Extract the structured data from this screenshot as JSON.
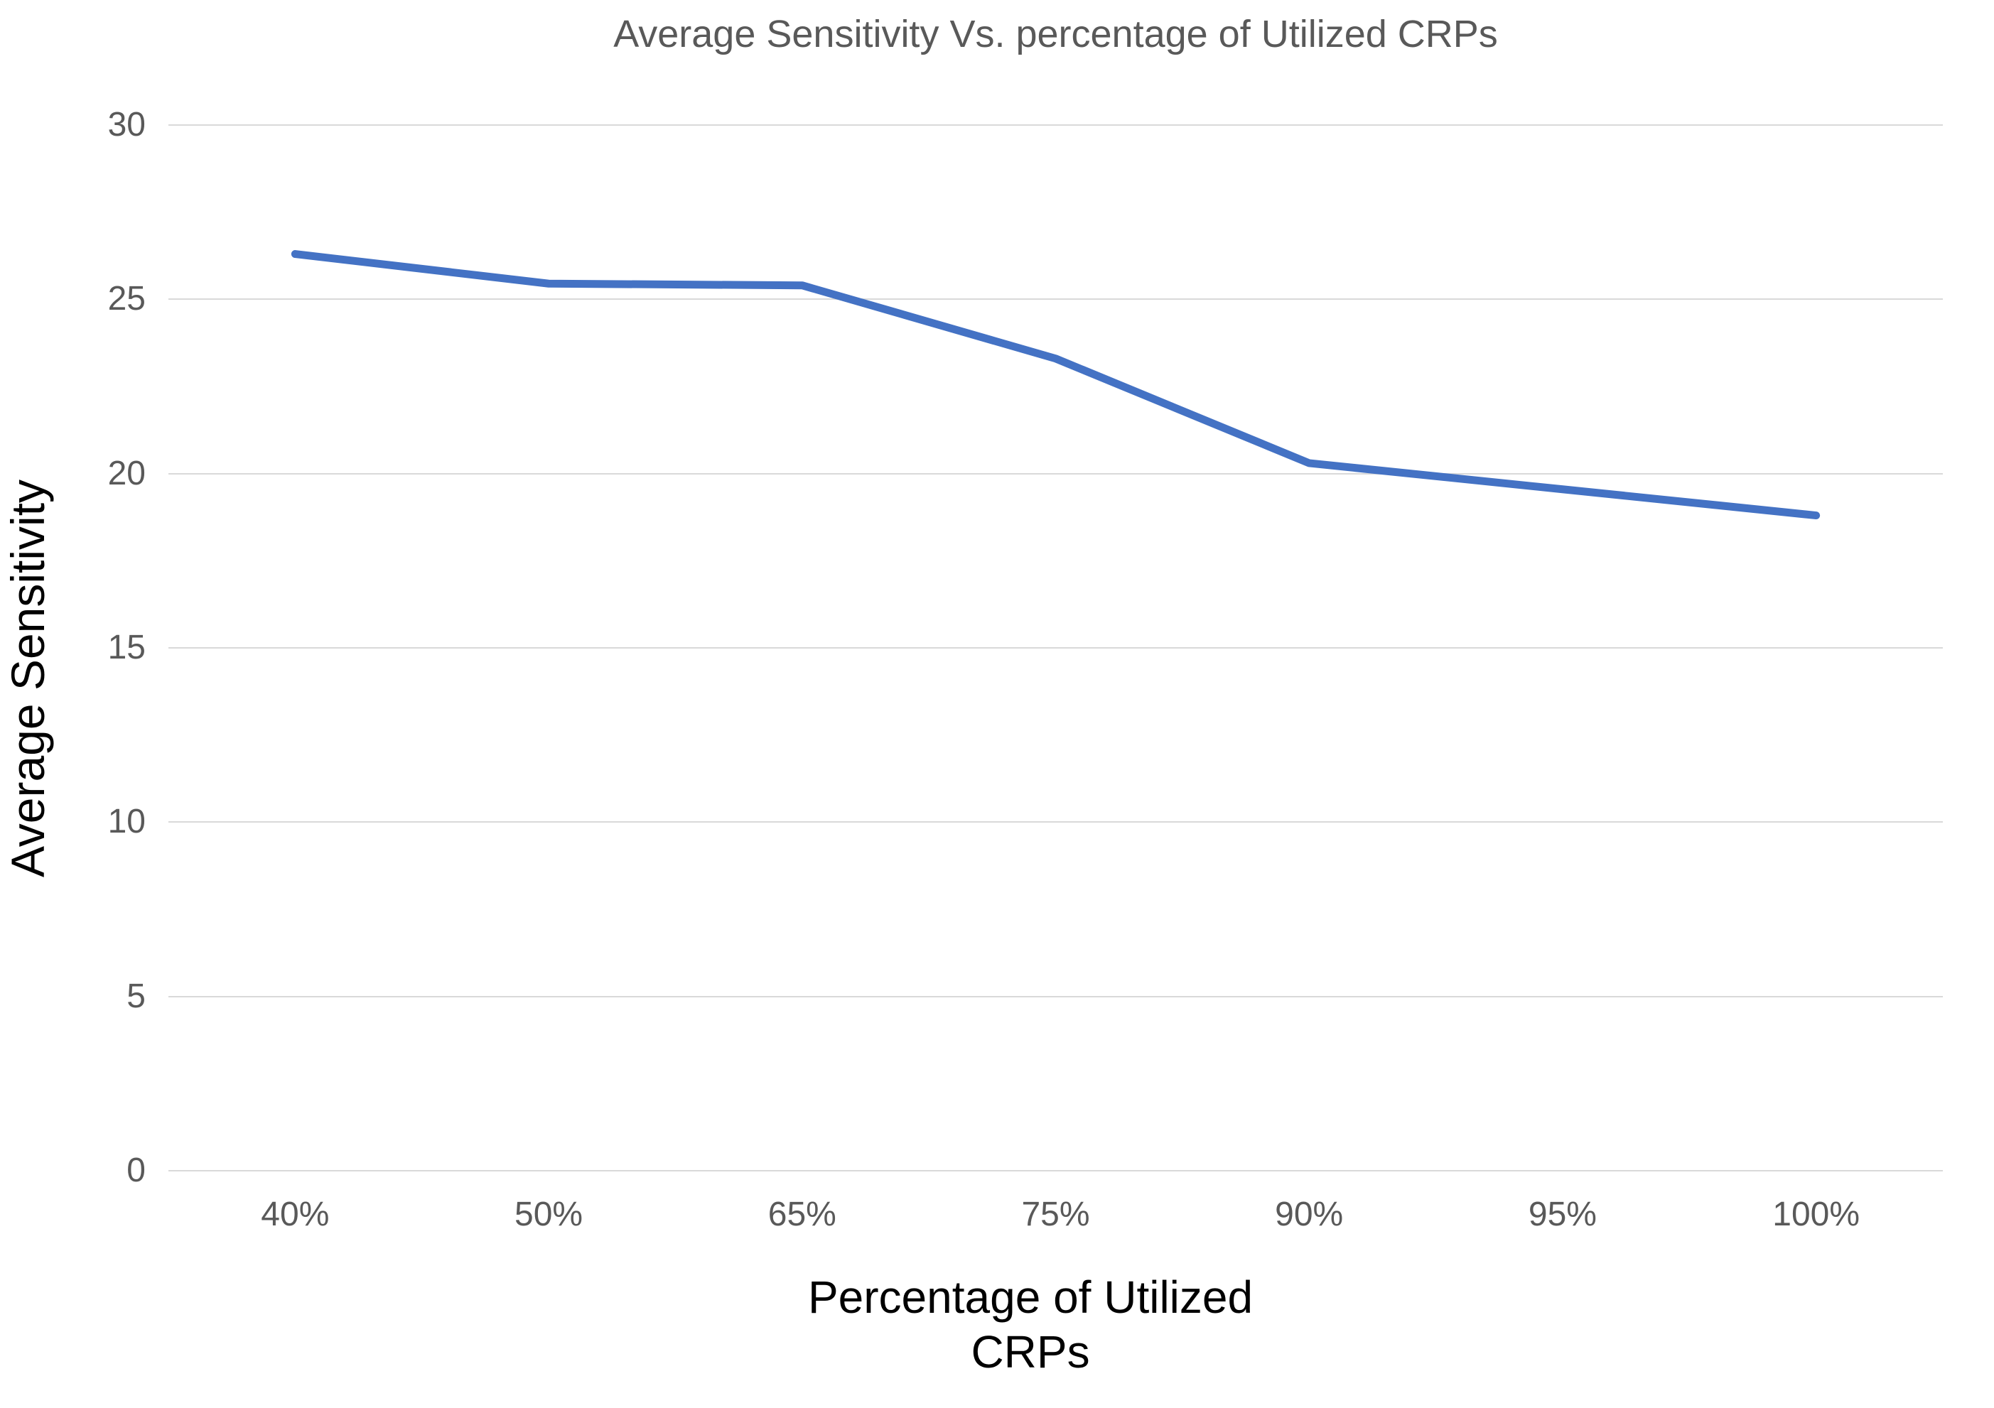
{
  "page": {
    "background": "#ffffff"
  },
  "chart_data": {
    "type": "line",
    "title": "Average Sensitivity Vs. percentage of Utilized CRPs",
    "xlabel": "Percentage of Utilized CRPs",
    "ylabel": "Average Sensitivity",
    "categories": [
      "40%",
      "50%",
      "65%",
      "75%",
      "90%",
      "95%",
      "100%"
    ],
    "series": [
      {
        "name": "Average Sensitivity",
        "values": [
          26.3,
          25.45,
          25.4,
          23.3,
          20.3,
          19.55,
          18.8
        ]
      }
    ],
    "ylim": [
      0,
      30
    ],
    "yticks": [
      0,
      5,
      10,
      15,
      20,
      25,
      30
    ],
    "grid": "horizontal",
    "legend": "none",
    "colors": {
      "line": "#4472C4",
      "gridline": "#D9D9D9",
      "title": "#595959",
      "tick_labels": "#595959",
      "axis_titles": "#000000"
    }
  }
}
